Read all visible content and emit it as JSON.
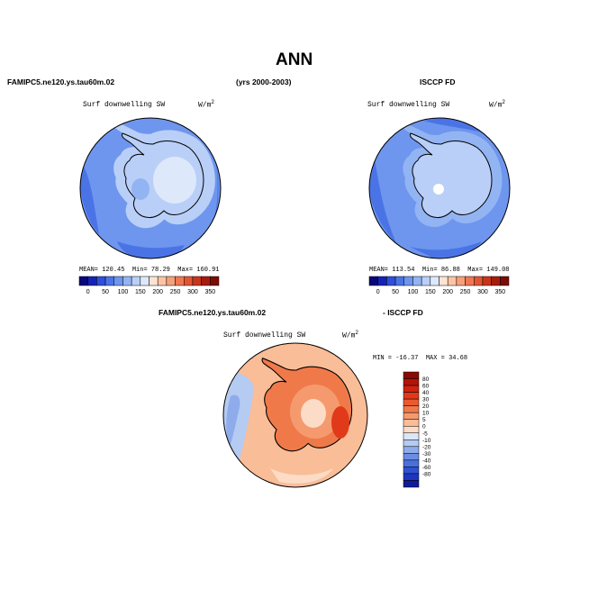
{
  "page": {
    "title": "ANN",
    "left_header": "FAMIPC5.ne120.ys.tau60m.02",
    "center_header": "(yrs 2000-2003)",
    "right_header": "ISCCP FD",
    "diff_header_left": "FAMIPC5.ne120.ys.tau60m.02",
    "diff_header_right": "- ISCCP FD"
  },
  "chart_data": [
    {
      "type": "heatmap",
      "projection": "polar-stereographic-south",
      "title": "Surf downwelling SW",
      "unit": "W/m",
      "unit_sup": "2",
      "stats": {
        "mean_label": "MEAN=",
        "mean": "120.45",
        "min_label": "Min=",
        "min": "78.29",
        "max_label": "Max=",
        "max": "160.91"
      },
      "colorbar": {
        "levels": [
          "0",
          "50",
          "100",
          "150",
          "200",
          "250",
          "300",
          "350"
        ],
        "colors": [
          "#08087a",
          "#1522b8",
          "#2e4fd8",
          "#4a74e6",
          "#6e96ee",
          "#93b4f3",
          "#b9cff7",
          "#dde8fb",
          "#fde3d2",
          "#fbc4a4",
          "#f6a07a",
          "#ee7852",
          "#e25532",
          "#c9351b",
          "#a51d0e",
          "#7d0c05"
        ]
      }
    },
    {
      "type": "heatmap",
      "projection": "polar-stereographic-south",
      "title": "Surf downwelling SW",
      "unit": "W/m",
      "unit_sup": "2",
      "stats": {
        "mean_label": "MEAN=",
        "mean": "113.54",
        "min_label": "Min=",
        "min": "86.88",
        "max_label": "Max=",
        "max": "149.08"
      },
      "colorbar": {
        "levels": [
          "0",
          "50",
          "100",
          "150",
          "200",
          "250",
          "300",
          "350"
        ],
        "colors": [
          "#08087a",
          "#1522b8",
          "#2e4fd8",
          "#4a74e6",
          "#6e96ee",
          "#93b4f3",
          "#b9cff7",
          "#dde8fb",
          "#fde3d2",
          "#fbc4a4",
          "#f6a07a",
          "#ee7852",
          "#e25532",
          "#c9351b",
          "#a51d0e",
          "#7d0c05"
        ]
      }
    },
    {
      "type": "heatmap",
      "projection": "polar-stereographic-south",
      "title": "Surf downwelling SW",
      "unit": "W/m",
      "unit_sup": "2",
      "stats": {
        "min_label": "MIN =",
        "min": "-16.37",
        "max_label": "MAX =",
        "max": "34.68"
      },
      "colorbar": {
        "orientation": "vertical",
        "levels": [
          "80",
          "60",
          "40",
          "30",
          "20",
          "10",
          "5",
          "0",
          "-5",
          "-10",
          "-20",
          "-30",
          "-40",
          "-60",
          "-80"
        ],
        "colors": [
          "#8b0a04",
          "#b31408",
          "#d0230e",
          "#e03a1a",
          "#ea5a30",
          "#f0794a",
          "#f59a6e",
          "#f9bd98",
          "#fcdcc6",
          "#dbe6f8",
          "#b5cbf2",
          "#8eaceb",
          "#6a8ee3",
          "#4a70dc",
          "#2f52d2",
          "#1d35c0",
          "#0e1c9c"
        ]
      }
    }
  ]
}
